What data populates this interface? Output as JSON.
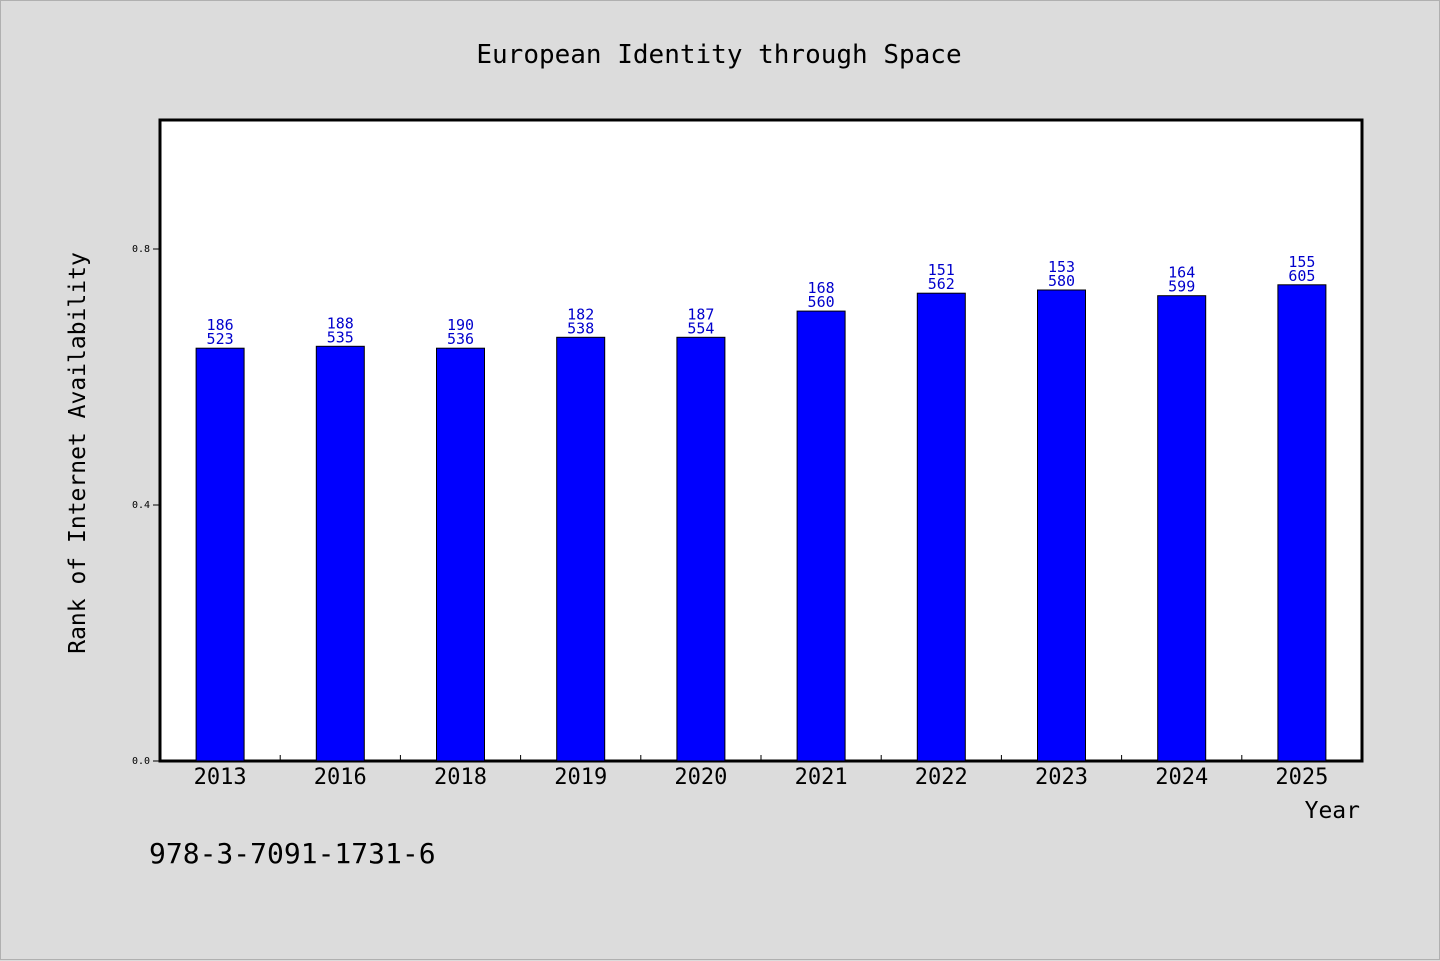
{
  "chart_data": {
    "type": "bar",
    "title": "European Identity through Space",
    "xlabel": "Year",
    "ylabel": "Rank of Internet Availability",
    "categories": [
      "2013",
      "2016",
      "2018",
      "2019",
      "2020",
      "2021",
      "2022",
      "2023",
      "2024",
      "2025"
    ],
    "values": [
      0.645,
      0.648,
      0.645,
      0.662,
      0.662,
      0.703,
      0.731,
      0.736,
      0.727,
      0.744
    ],
    "data_labels": [
      [
        "186",
        "523"
      ],
      [
        "188",
        "535"
      ],
      [
        "190",
        "536"
      ],
      [
        "182",
        "538"
      ],
      [
        "187",
        "554"
      ],
      [
        "168",
        "560"
      ],
      [
        "151",
        "562"
      ],
      [
        "153",
        "580"
      ],
      [
        "164",
        "599"
      ],
      [
        "155",
        "605"
      ]
    ],
    "ylim": [
      0,
      1.0
    ],
    "yticks": [
      0.0,
      0.4,
      0.8
    ],
    "ytick_labels": [
      "0.0",
      "0.4",
      "0.8"
    ],
    "bar_color": "#0000ff",
    "label_color": "#0000cc",
    "grid": false,
    "legend": "none"
  },
  "footer": {
    "isbn": "978-3-7091-1731-6"
  }
}
